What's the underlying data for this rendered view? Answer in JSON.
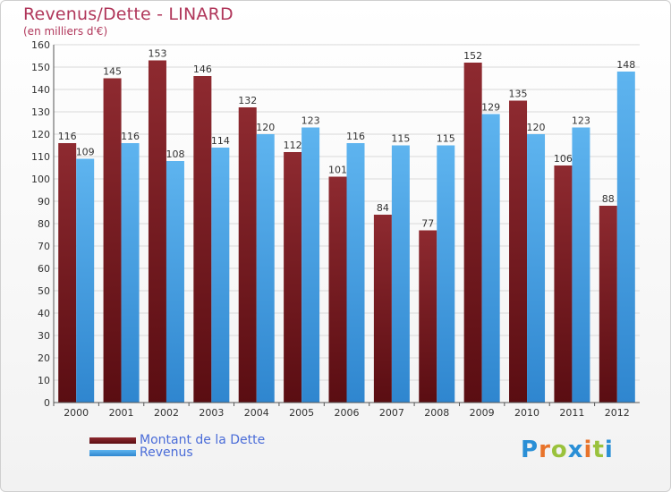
{
  "header": {
    "title": "Revenus/Dette - LINARD",
    "subtitle": "(en milliers d'€)"
  },
  "legend": {
    "items": [
      {
        "label": "Montant de la Dette",
        "color": "#7a1a1f"
      },
      {
        "label": "Revenus",
        "color": "#4da6e6"
      }
    ]
  },
  "logo": {
    "letters": [
      "P",
      "r",
      "o",
      "x",
      "i",
      "t",
      "i"
    ],
    "colors": [
      "#2a8fd6",
      "#e8732a",
      "#9ac23c",
      "#2a8fd6",
      "#e8732a",
      "#9ac23c",
      "#2a8fd6"
    ]
  },
  "chart_data": {
    "type": "bar",
    "title": "Revenus/Dette - LINARD",
    "subtitle": "(en milliers d'€)",
    "categories": [
      "2000",
      "2001",
      "2002",
      "2003",
      "2004",
      "2005",
      "2006",
      "2007",
      "2008",
      "2009",
      "2010",
      "2011",
      "2012"
    ],
    "series": [
      {
        "name": "Montant de la Dette",
        "color": "#7a1a1f",
        "values": [
          116,
          145,
          153,
          146,
          132,
          112,
          101,
          84,
          77,
          152,
          135,
          106,
          88
        ]
      },
      {
        "name": "Revenus",
        "color": "#4da6e6",
        "values": [
          109,
          116,
          108,
          114,
          120,
          123,
          116,
          115,
          115,
          129,
          120,
          123,
          148
        ]
      }
    ],
    "ylim": [
      0,
      160
    ],
    "yticks": [
      0,
      10,
      20,
      30,
      40,
      50,
      60,
      70,
      80,
      90,
      100,
      110,
      120,
      130,
      140,
      150,
      160
    ],
    "grid": true,
    "legend_position": "bottom-left"
  }
}
